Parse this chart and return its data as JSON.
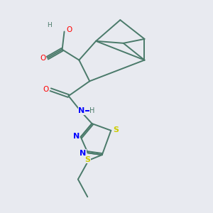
{
  "background_color": "#e8eaf0",
  "bond_color": "#4a7a6a",
  "atom_colors": {
    "O": "#ff0000",
    "N": "#0000ff",
    "S": "#cccc00",
    "H": "#4a7a6a",
    "C": "#4a7a6a"
  },
  "figsize": [
    3.0,
    3.0
  ],
  "dpi": 100
}
